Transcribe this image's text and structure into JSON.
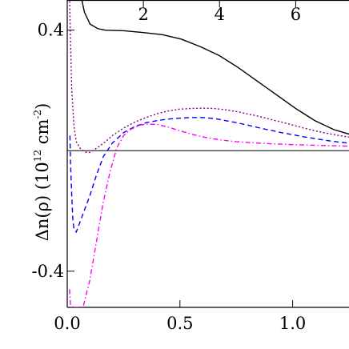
{
  "chart_data": {
    "type": "line",
    "ylabel": {
      "base": "Δn(ρ) (10",
      "exponent": "12",
      "middle": " cm",
      "exponent2": "-2",
      "end": ")"
    },
    "bottom_axis": {
      "ticks": [
        0.0,
        0.5,
        1.0
      ],
      "tick_labels": [
        "0.0",
        "0.5",
        "1.0"
      ],
      "range": [
        0.0,
        1.25
      ]
    },
    "top_axis": {
      "ticks": [
        2,
        4,
        6
      ],
      "tick_labels": [
        "2",
        "4",
        "6"
      ],
      "range": [
        0.0,
        7.4
      ]
    },
    "yaxis": {
      "ticks": [
        0.4,
        -0.4
      ],
      "tick_labels": [
        "0.4",
        "-0.4"
      ],
      "range": [
        -0.52,
        0.5
      ]
    },
    "zero_line": true,
    "series": [
      {
        "style": "solid",
        "color": "#000000",
        "axis": "top",
        "points": [
          [
            0.35,
            0.52
          ],
          [
            0.45,
            0.46
          ],
          [
            0.6,
            0.42
          ],
          [
            0.8,
            0.405
          ],
          [
            1.0,
            0.4
          ],
          [
            1.5,
            0.398
          ],
          [
            2.0,
            0.392
          ],
          [
            2.5,
            0.385
          ],
          [
            3.0,
            0.37
          ],
          [
            3.5,
            0.345
          ],
          [
            4.0,
            0.315
          ],
          [
            4.5,
            0.275
          ],
          [
            5.0,
            0.23
          ],
          [
            5.5,
            0.185
          ],
          [
            6.0,
            0.14
          ],
          [
            6.5,
            0.1
          ],
          [
            7.0,
            0.07
          ],
          [
            7.4,
            0.055
          ]
        ]
      },
      {
        "style": "dotted",
        "color": "#800080",
        "axis": "bottom",
        "points": [
          [
            0.01,
            0.52
          ],
          [
            0.015,
            0.35
          ],
          [
            0.02,
            0.2
          ],
          [
            0.03,
            0.08
          ],
          [
            0.04,
            0.03
          ],
          [
            0.06,
            0.005
          ],
          [
            0.08,
            -0.005
          ],
          [
            0.1,
            -0.006
          ],
          [
            0.13,
            0.008
          ],
          [
            0.17,
            0.03
          ],
          [
            0.2,
            0.05
          ],
          [
            0.25,
            0.075
          ],
          [
            0.3,
            0.095
          ],
          [
            0.35,
            0.11
          ],
          [
            0.4,
            0.123
          ],
          [
            0.45,
            0.132
          ],
          [
            0.5,
            0.138
          ],
          [
            0.55,
            0.14
          ],
          [
            0.6,
            0.141
          ],
          [
            0.65,
            0.14
          ],
          [
            0.7,
            0.136
          ],
          [
            0.75,
            0.13
          ],
          [
            0.8,
            0.122
          ],
          [
            0.85,
            0.114
          ],
          [
            0.9,
            0.104
          ],
          [
            0.95,
            0.095
          ],
          [
            1.0,
            0.085
          ],
          [
            1.05,
            0.075
          ],
          [
            1.1,
            0.066
          ],
          [
            1.15,
            0.058
          ],
          [
            1.2,
            0.051
          ],
          [
            1.25,
            0.045
          ]
        ]
      },
      {
        "style": "dashed",
        "color": "#0000ff",
        "axis": "bottom",
        "points": [
          [
            0.012,
            0.05
          ],
          [
            0.015,
            -0.05
          ],
          [
            0.02,
            -0.15
          ],
          [
            0.025,
            -0.23
          ],
          [
            0.03,
            -0.26
          ],
          [
            0.04,
            -0.27
          ],
          [
            0.05,
            -0.25
          ],
          [
            0.07,
            -0.21
          ],
          [
            0.1,
            -0.15
          ],
          [
            0.13,
            -0.08
          ],
          [
            0.16,
            -0.02
          ],
          [
            0.2,
            0.025
          ],
          [
            0.25,
            0.06
          ],
          [
            0.3,
            0.08
          ],
          [
            0.35,
            0.093
          ],
          [
            0.4,
            0.1
          ],
          [
            0.45,
            0.105
          ],
          [
            0.5,
            0.108
          ],
          [
            0.55,
            0.11
          ],
          [
            0.6,
            0.11
          ],
          [
            0.65,
            0.107
          ],
          [
            0.7,
            0.1
          ],
          [
            0.75,
            0.093
          ],
          [
            0.8,
            0.085
          ],
          [
            0.85,
            0.076
          ],
          [
            0.9,
            0.068
          ],
          [
            0.95,
            0.06
          ],
          [
            1.0,
            0.053
          ],
          [
            1.05,
            0.046
          ],
          [
            1.1,
            0.04
          ],
          [
            1.15,
            0.034
          ],
          [
            1.2,
            0.029
          ],
          [
            1.25,
            0.025
          ]
        ]
      },
      {
        "style": "dashdot",
        "color": "#ff00ff",
        "axis": "bottom",
        "points": [
          [
            0.01,
            -0.46
          ],
          [
            0.015,
            -0.52
          ],
          [
            0.07,
            -0.52
          ],
          [
            0.1,
            -0.43
          ],
          [
            0.13,
            -0.3
          ],
          [
            0.16,
            -0.17
          ],
          [
            0.19,
            -0.07
          ],
          [
            0.22,
            0.01
          ],
          [
            0.25,
            0.05
          ],
          [
            0.28,
            0.07
          ],
          [
            0.32,
            0.085
          ],
          [
            0.36,
            0.088
          ],
          [
            0.4,
            0.087
          ],
          [
            0.45,
            0.078
          ],
          [
            0.5,
            0.066
          ],
          [
            0.55,
            0.055
          ],
          [
            0.6,
            0.046
          ],
          [
            0.65,
            0.039
          ],
          [
            0.7,
            0.034
          ],
          [
            0.75,
            0.03
          ],
          [
            0.8,
            0.027
          ],
          [
            0.85,
            0.025
          ],
          [
            0.9,
            0.023
          ],
          [
            1.0,
            0.02
          ],
          [
            1.1,
            0.018
          ],
          [
            1.25,
            0.015
          ]
        ]
      }
    ]
  }
}
